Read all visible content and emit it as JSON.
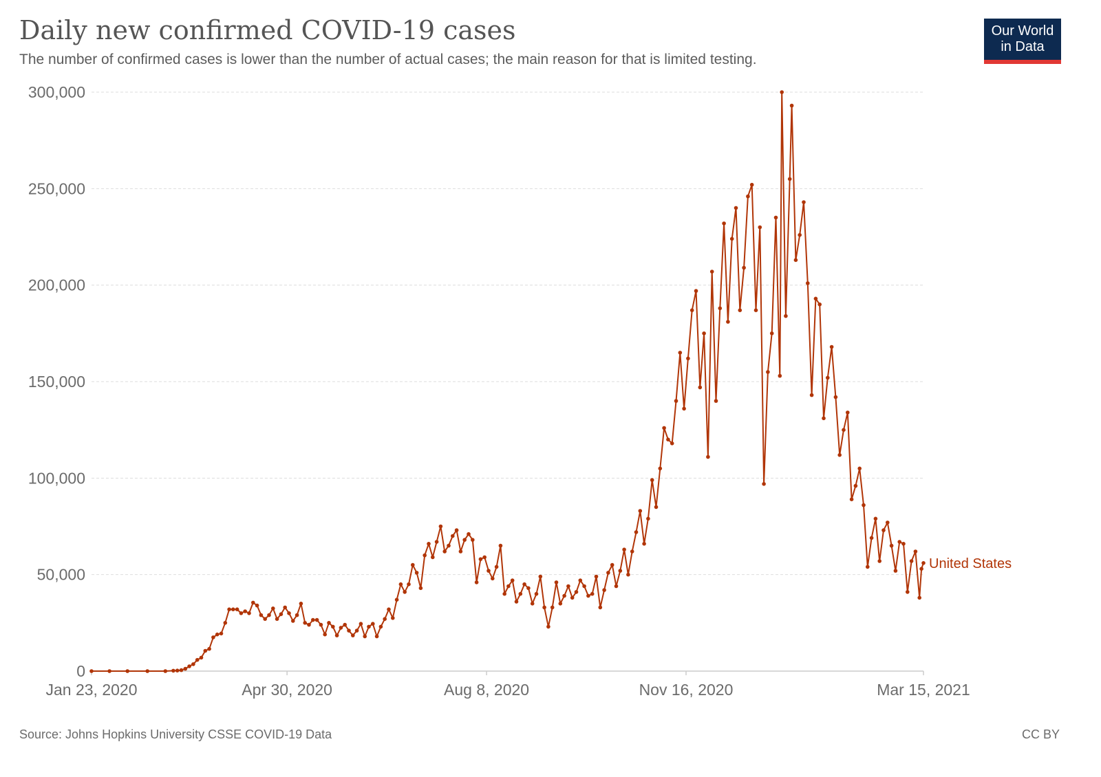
{
  "header": {
    "title": "Daily new confirmed COVID-19 cases",
    "subtitle": "The number of confirmed cases is lower than the number of actual cases; the main reason for that is limited testing."
  },
  "logo": {
    "line1": "Our World",
    "line2": "in Data"
  },
  "footer": {
    "source": "Source: Johns Hopkins University CSSE COVID-19 Data",
    "license": "CC BY"
  },
  "colors": {
    "series": "#b13507",
    "grid": "#dddddd",
    "axis": "#cccccc",
    "logo_bg": "#0d2a50",
    "logo_accent": "#e13834"
  },
  "chart_data": {
    "type": "line",
    "title": "Daily new confirmed COVID-19 cases",
    "xlabel": "",
    "ylabel": "",
    "x_range": [
      "2020-01-23",
      "2021-03-15"
    ],
    "ylim": [
      0,
      300000
    ],
    "yticks": [
      0,
      50000,
      100000,
      150000,
      200000,
      250000,
      300000
    ],
    "ytick_labels": [
      "0",
      "50,000",
      "100,000",
      "150,000",
      "200,000",
      "250,000",
      "300,000"
    ],
    "xticks": [
      "2020-01-23",
      "2020-04-30",
      "2020-08-08",
      "2020-11-16",
      "2021-03-15"
    ],
    "xtick_labels": [
      "Jan 23, 2020",
      "Apr 30, 2020",
      "Aug 8, 2020",
      "Nov 16, 2020",
      "Mar 15, 2021"
    ],
    "grid": "horizontal dashed",
    "legend": "end-of-line label",
    "series": [
      {
        "name": "United States",
        "color": "#b13507",
        "points": [
          [
            "2020-01-23",
            0
          ],
          [
            "2020-02-01",
            0
          ],
          [
            "2020-02-10",
            0
          ],
          [
            "2020-02-20",
            0
          ],
          [
            "2020-02-29",
            0
          ],
          [
            "2020-03-04",
            200
          ],
          [
            "2020-03-06",
            300
          ],
          [
            "2020-03-08",
            500
          ],
          [
            "2020-03-10",
            1200
          ],
          [
            "2020-03-12",
            2500
          ],
          [
            "2020-03-14",
            3600
          ],
          [
            "2020-03-16",
            5800
          ],
          [
            "2020-03-18",
            7000
          ],
          [
            "2020-03-20",
            10500
          ],
          [
            "2020-03-22",
            11500
          ],
          [
            "2020-03-24",
            17500
          ],
          [
            "2020-03-26",
            19000
          ],
          [
            "2020-03-28",
            19500
          ],
          [
            "2020-03-30",
            25000
          ],
          [
            "2020-04-01",
            32000
          ],
          [
            "2020-04-03",
            32000
          ],
          [
            "2020-04-05",
            32000
          ],
          [
            "2020-04-07",
            30000
          ],
          [
            "2020-04-09",
            31000
          ],
          [
            "2020-04-11",
            30000
          ],
          [
            "2020-04-13",
            35500
          ],
          [
            "2020-04-15",
            34000
          ],
          [
            "2020-04-17",
            29000
          ],
          [
            "2020-04-19",
            27000
          ],
          [
            "2020-04-21",
            29000
          ],
          [
            "2020-04-23",
            32500
          ],
          [
            "2020-04-25",
            27000
          ],
          [
            "2020-04-27",
            29500
          ],
          [
            "2020-04-29",
            33000
          ],
          [
            "2020-05-01",
            30000
          ],
          [
            "2020-05-03",
            26000
          ],
          [
            "2020-05-05",
            29000
          ],
          [
            "2020-05-07",
            35000
          ],
          [
            "2020-05-09",
            25000
          ],
          [
            "2020-05-11",
            24000
          ],
          [
            "2020-05-13",
            26500
          ],
          [
            "2020-05-15",
            26500
          ],
          [
            "2020-05-17",
            24000
          ],
          [
            "2020-05-19",
            19000
          ],
          [
            "2020-05-21",
            25000
          ],
          [
            "2020-05-23",
            23000
          ],
          [
            "2020-05-25",
            18500
          ],
          [
            "2020-05-27",
            22500
          ],
          [
            "2020-05-29",
            24000
          ],
          [
            "2020-05-31",
            21000
          ],
          [
            "2020-06-02",
            18500
          ],
          [
            "2020-06-04",
            21000
          ],
          [
            "2020-06-06",
            24500
          ],
          [
            "2020-06-08",
            18000
          ],
          [
            "2020-06-10",
            23000
          ],
          [
            "2020-06-12",
            24500
          ],
          [
            "2020-06-14",
            18000
          ],
          [
            "2020-06-16",
            23000
          ],
          [
            "2020-06-18",
            27000
          ],
          [
            "2020-06-20",
            32000
          ],
          [
            "2020-06-22",
            27500
          ],
          [
            "2020-06-24",
            37000
          ],
          [
            "2020-06-26",
            45000
          ],
          [
            "2020-06-28",
            41000
          ],
          [
            "2020-06-30",
            45000
          ],
          [
            "2020-07-02",
            55000
          ],
          [
            "2020-07-04",
            51000
          ],
          [
            "2020-07-06",
            43000
          ],
          [
            "2020-07-08",
            60000
          ],
          [
            "2020-07-10",
            66000
          ],
          [
            "2020-07-12",
            59000
          ],
          [
            "2020-07-14",
            67000
          ],
          [
            "2020-07-16",
            75000
          ],
          [
            "2020-07-18",
            62000
          ],
          [
            "2020-07-20",
            65000
          ],
          [
            "2020-07-22",
            70000
          ],
          [
            "2020-07-24",
            73000
          ],
          [
            "2020-07-26",
            62000
          ],
          [
            "2020-07-28",
            68000
          ],
          [
            "2020-07-30",
            71000
          ],
          [
            "2020-08-01",
            68000
          ],
          [
            "2020-08-03",
            46000
          ],
          [
            "2020-08-05",
            58000
          ],
          [
            "2020-08-07",
            59000
          ],
          [
            "2020-08-09",
            52000
          ],
          [
            "2020-08-11",
            48000
          ],
          [
            "2020-08-13",
            54000
          ],
          [
            "2020-08-15",
            65000
          ],
          [
            "2020-08-17",
            40000
          ],
          [
            "2020-08-19",
            44000
          ],
          [
            "2020-08-21",
            47000
          ],
          [
            "2020-08-23",
            36000
          ],
          [
            "2020-08-25",
            40000
          ],
          [
            "2020-08-27",
            45000
          ],
          [
            "2020-08-29",
            43000
          ],
          [
            "2020-08-31",
            35000
          ],
          [
            "2020-09-02",
            40000
          ],
          [
            "2020-09-04",
            49000
          ],
          [
            "2020-09-06",
            33000
          ],
          [
            "2020-09-08",
            23000
          ],
          [
            "2020-09-10",
            33000
          ],
          [
            "2020-09-12",
            46000
          ],
          [
            "2020-09-14",
            35000
          ],
          [
            "2020-09-16",
            39000
          ],
          [
            "2020-09-18",
            44000
          ],
          [
            "2020-09-20",
            38000
          ],
          [
            "2020-09-22",
            41000
          ],
          [
            "2020-09-24",
            47000
          ],
          [
            "2020-09-26",
            44000
          ],
          [
            "2020-09-28",
            39000
          ],
          [
            "2020-09-30",
            40000
          ],
          [
            "2020-10-02",
            49000
          ],
          [
            "2020-10-04",
            33000
          ],
          [
            "2020-10-06",
            42000
          ],
          [
            "2020-10-08",
            51000
          ],
          [
            "2020-10-10",
            55000
          ],
          [
            "2020-10-12",
            44000
          ],
          [
            "2020-10-14",
            52000
          ],
          [
            "2020-10-16",
            63000
          ],
          [
            "2020-10-18",
            50000
          ],
          [
            "2020-10-20",
            62000
          ],
          [
            "2020-10-22",
            72000
          ],
          [
            "2020-10-24",
            83000
          ],
          [
            "2020-10-26",
            66000
          ],
          [
            "2020-10-28",
            79000
          ],
          [
            "2020-10-30",
            99000
          ],
          [
            "2020-11-01",
            85000
          ],
          [
            "2020-11-03",
            105000
          ],
          [
            "2020-11-05",
            126000
          ],
          [
            "2020-11-07",
            120000
          ],
          [
            "2020-11-09",
            118000
          ],
          [
            "2020-11-11",
            140000
          ],
          [
            "2020-11-13",
            165000
          ],
          [
            "2020-11-15",
            136000
          ],
          [
            "2020-11-17",
            162000
          ],
          [
            "2020-11-19",
            187000
          ],
          [
            "2020-11-21",
            197000
          ],
          [
            "2020-11-23",
            147000
          ],
          [
            "2020-11-25",
            175000
          ],
          [
            "2020-11-27",
            111000
          ],
          [
            "2020-11-29",
            207000
          ],
          [
            "2020-12-01",
            140000
          ],
          [
            "2020-12-03",
            188000
          ],
          [
            "2020-12-05",
            232000
          ],
          [
            "2020-12-07",
            181000
          ],
          [
            "2020-12-09",
            224000
          ],
          [
            "2020-12-11",
            240000
          ],
          [
            "2020-12-13",
            187000
          ],
          [
            "2020-12-15",
            209000
          ],
          [
            "2020-12-17",
            246000
          ],
          [
            "2020-12-19",
            252000
          ],
          [
            "2020-12-21",
            187000
          ],
          [
            "2020-12-23",
            230000
          ],
          [
            "2020-12-25",
            97000
          ],
          [
            "2020-12-27",
            155000
          ],
          [
            "2020-12-29",
            175000
          ],
          [
            "2020-12-31",
            235000
          ],
          [
            "2021-01-02",
            153000
          ],
          [
            "2021-01-03",
            300000
          ],
          [
            "2021-01-05",
            184000
          ],
          [
            "2021-01-07",
            255000
          ],
          [
            "2021-01-08",
            293000
          ],
          [
            "2021-01-10",
            213000
          ],
          [
            "2021-01-12",
            226000
          ],
          [
            "2021-01-14",
            243000
          ],
          [
            "2021-01-16",
            201000
          ],
          [
            "2021-01-18",
            143000
          ],
          [
            "2021-01-20",
            193000
          ],
          [
            "2021-01-22",
            190000
          ],
          [
            "2021-01-24",
            131000
          ],
          [
            "2021-01-26",
            152000
          ],
          [
            "2021-01-28",
            168000
          ],
          [
            "2021-01-30",
            142000
          ],
          [
            "2021-02-01",
            112000
          ],
          [
            "2021-02-03",
            125000
          ],
          [
            "2021-02-05",
            134000
          ],
          [
            "2021-02-07",
            89000
          ],
          [
            "2021-02-09",
            96000
          ],
          [
            "2021-02-11",
            105000
          ],
          [
            "2021-02-13",
            86000
          ],
          [
            "2021-02-15",
            54000
          ],
          [
            "2021-02-17",
            69000
          ],
          [
            "2021-02-19",
            79000
          ],
          [
            "2021-02-21",
            57000
          ],
          [
            "2021-02-23",
            73000
          ],
          [
            "2021-02-25",
            77000
          ],
          [
            "2021-02-27",
            65000
          ],
          [
            "2021-03-01",
            52000
          ],
          [
            "2021-03-03",
            67000
          ],
          [
            "2021-03-05",
            66000
          ],
          [
            "2021-03-07",
            41000
          ],
          [
            "2021-03-09",
            57000
          ],
          [
            "2021-03-11",
            62000
          ],
          [
            "2021-03-13",
            38000
          ],
          [
            "2021-03-14",
            53000
          ],
          [
            "2021-03-15",
            56000
          ]
        ]
      }
    ]
  }
}
